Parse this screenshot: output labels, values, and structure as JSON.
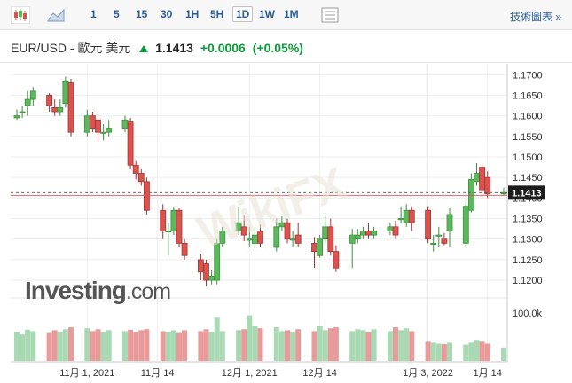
{
  "toolbar": {
    "timeframes": [
      "1",
      "5",
      "15",
      "30",
      "1H",
      "5H",
      "1D",
      "1W",
      "1M"
    ],
    "active": "1D",
    "tech_link": "技術圖表 »"
  },
  "header": {
    "symbol": "EUR/USD - 歐元 美元",
    "price": "1.1413",
    "change": "+0.0006",
    "change_pct": "(+0.05%)"
  },
  "logo": {
    "name": "Investing",
    "domain": ".com"
  },
  "watermark": "WikiFX",
  "colors": {
    "up": "#5cb85c",
    "down": "#d9534f",
    "vol_up": "#a9d9b3",
    "vol_down": "#e99a9a"
  },
  "chart_data": {
    "type": "candlestick",
    "dates": [
      "2021-10-19",
      "2021-10-20",
      "2021-10-21",
      "2021-10-22",
      "2021-10-25",
      "2021-10-26",
      "2021-10-27",
      "2021-10-28",
      "2021-10-29",
      "2021-11-01",
      "2021-11-02",
      "2021-11-03",
      "2021-11-04",
      "2021-11-05",
      "2021-11-08",
      "2021-11-09",
      "2021-11-10",
      "2021-11-11",
      "2021-11-12",
      "2021-11-15",
      "2021-11-16",
      "2021-11-17",
      "2021-11-18",
      "2021-11-19",
      "2021-11-22",
      "2021-11-23",
      "2021-11-24",
      "2021-11-25",
      "2021-11-26",
      "2021-11-29",
      "2021-11-30",
      "2021-12-01",
      "2021-12-02",
      "2021-12-03",
      "2021-12-06",
      "2021-12-07",
      "2021-12-08",
      "2021-12-09",
      "2021-12-10",
      "2021-12-13",
      "2021-12-14",
      "2021-12-15",
      "2021-12-16",
      "2021-12-17",
      "2021-12-20",
      "2021-12-21",
      "2021-12-22",
      "2021-12-23",
      "2021-12-24",
      "2021-12-27",
      "2021-12-28",
      "2021-12-29",
      "2021-12-30",
      "2021-12-31",
      "2022-01-03",
      "2022-01-04",
      "2022-01-05",
      "2022-01-06",
      "2022-01-07",
      "2022-01-10",
      "2022-01-11",
      "2022-01-12",
      "2022-01-13",
      "2022-01-14",
      "2022-01-17"
    ],
    "open": [
      1.1595,
      1.161,
      1.1625,
      1.164,
      1.165,
      1.162,
      1.161,
      1.163,
      1.168,
      1.156,
      1.16,
      1.159,
      1.156,
      1.156,
      1.157,
      1.1585,
      1.148,
      1.146,
      1.144,
      1.137,
      1.132,
      1.132,
      1.137,
      1.129,
      1.125,
      1.124,
      1.12,
      1.12,
      1.129,
      1.132,
      1.133,
      1.13,
      1.129,
      1.132,
      1.128,
      1.133,
      1.134,
      1.13,
      1.131,
      1.129,
      1.126,
      1.13,
      1.133,
      1.127,
      1.129,
      1.13,
      1.131,
      1.132,
      1.131,
      1.132,
      1.133,
      1.135,
      1.134,
      1.137,
      1.137,
      1.129,
      1.131,
      1.13,
      1.132,
      1.129,
      1.137,
      1.144,
      1.1475,
      1.145,
      1.141
    ],
    "close": [
      1.16,
      1.161,
      1.164,
      1.166,
      1.1625,
      1.161,
      1.162,
      1.1685,
      1.156,
      1.16,
      1.157,
      1.156,
      1.156,
      1.157,
      1.159,
      1.148,
      1.146,
      1.144,
      1.137,
      1.132,
      1.132,
      1.137,
      1.129,
      1.126,
      1.122,
      1.12,
      1.121,
      1.129,
      1.132,
      1.134,
      1.131,
      1.13,
      1.131,
      1.129,
      1.133,
      1.134,
      1.13,
      1.13,
      1.129,
      1.127,
      1.13,
      1.133,
      1.127,
      1.123,
      1.131,
      1.131,
      1.132,
      1.131,
      1.132,
      1.133,
      1.131,
      1.135,
      1.137,
      1.134,
      1.13,
      1.129,
      1.131,
      1.129,
      1.136,
      1.138,
      1.1445,
      1.146,
      1.142,
      1.141,
      1.1413
    ],
    "high": [
      1.1615,
      1.1625,
      1.166,
      1.167,
      1.1655,
      1.164,
      1.164,
      1.1695,
      1.169,
      1.1615,
      1.161,
      1.16,
      1.158,
      1.159,
      1.16,
      1.1595,
      1.149,
      1.147,
      1.145,
      1.1385,
      1.134,
      1.138,
      1.1375,
      1.13,
      1.1265,
      1.125,
      1.1225,
      1.13,
      1.133,
      1.138,
      1.136,
      1.133,
      1.133,
      1.1335,
      1.135,
      1.1355,
      1.135,
      1.132,
      1.134,
      1.1305,
      1.131,
      1.136,
      1.135,
      1.1285,
      1.1325,
      1.1325,
      1.133,
      1.134,
      1.133,
      1.134,
      1.1345,
      1.138,
      1.1385,
      1.138,
      1.138,
      1.131,
      1.133,
      1.1315,
      1.1375,
      1.139,
      1.146,
      1.1485,
      1.1485,
      1.1465,
      1.1425
    ],
    "low": [
      1.159,
      1.1595,
      1.16,
      1.1625,
      1.161,
      1.16,
      1.16,
      1.162,
      1.155,
      1.155,
      1.156,
      1.154,
      1.154,
      1.155,
      1.156,
      1.147,
      1.1445,
      1.143,
      1.136,
      1.13,
      1.126,
      1.131,
      1.128,
      1.125,
      1.12,
      1.1185,
      1.119,
      1.119,
      1.128,
      1.131,
      1.1295,
      1.128,
      1.1275,
      1.128,
      1.127,
      1.132,
      1.129,
      1.128,
      1.128,
      1.123,
      1.1255,
      1.129,
      1.126,
      1.122,
      1.123,
      1.129,
      1.13,
      1.13,
      1.13,
      1.131,
      1.13,
      1.134,
      1.133,
      1.132,
      1.129,
      1.127,
      1.128,
      1.1285,
      1.128,
      1.128,
      1.1365,
      1.143,
      1.14,
      1.14,
      1.1405
    ],
    "volume": [
      60,
      55,
      65,
      62,
      58,
      64,
      60,
      66,
      70,
      68,
      62,
      66,
      60,
      64,
      62,
      65,
      60,
      64,
      66,
      62,
      60,
      64,
      58,
      64,
      62,
      66,
      60,
      90,
      62,
      64,
      66,
      95,
      72,
      68,
      70,
      62,
      64,
      60,
      66,
      62,
      72,
      64,
      68,
      70,
      62,
      66,
      64,
      60,
      66,
      62,
      70,
      64,
      68,
      62,
      40,
      38,
      36,
      35,
      38,
      34,
      38,
      42,
      40,
      36,
      28
    ],
    "y_ticks": [
      "1.1700",
      "1.1650",
      "1.1600",
      "1.1550",
      "1.1500",
      "1.1450",
      "1.1400",
      "1.1350",
      "1.1300",
      "1.1250",
      "1.1200"
    ],
    "y_range": [
      1.117,
      1.172
    ],
    "volume_label": "100.0k",
    "volume_max": 120,
    "x_labels": [
      {
        "label": "11月 1, 2021",
        "date": "2021-11-01"
      },
      {
        "label": "11月 14",
        "date": "2021-11-14"
      },
      {
        "label": "12月 1, 2021",
        "date": "2021-12-01"
      },
      {
        "label": "12月 14",
        "date": "2021-12-14"
      },
      {
        "label": "1月 3, 2022",
        "date": "2022-01-03"
      },
      {
        "label": "1月 14",
        "date": "2022-01-14"
      }
    ],
    "current_price": 1.1413,
    "current_label": "1.1413",
    "grid": true
  }
}
